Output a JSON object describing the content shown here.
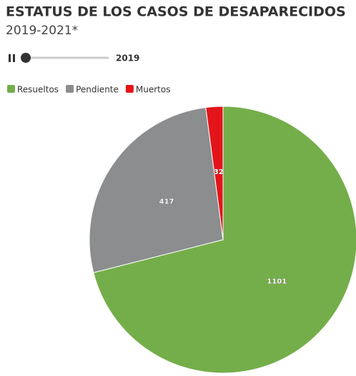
{
  "chart_data": {
    "type": "pie",
    "title": "ESTATUS DE LOS CASOS DE DESAPARECIDOS",
    "subtitle": "2019-2021*",
    "slider_label": "2019",
    "categories": [
      "Resueltos",
      "Pendiente",
      "Muertos"
    ],
    "values": [
      1101,
      417,
      32
    ],
    "colors": [
      "#74ae4a",
      "#8b8d8e",
      "#e3151a"
    ]
  }
}
